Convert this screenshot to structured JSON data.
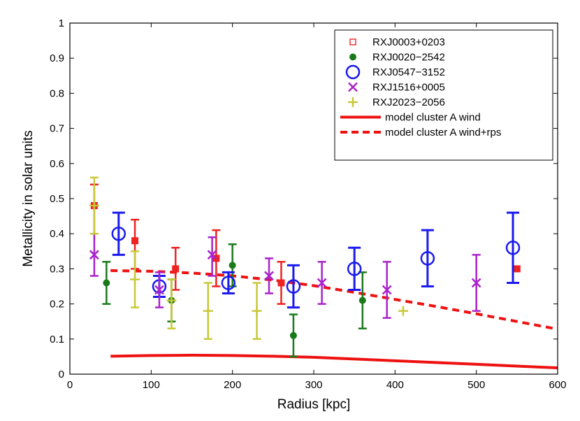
{
  "chart_data": {
    "type": "scatter",
    "title": "",
    "xlabel": "Radius [kpc]",
    "ylabel": "Metallicity in solar units",
    "xlim": [
      0,
      600
    ],
    "ylim": [
      0,
      1
    ],
    "xticks": [
      0,
      100,
      200,
      300,
      400,
      500,
      600
    ],
    "yticks": [
      0,
      0.1,
      0.2,
      0.3,
      0.4,
      0.5,
      0.6,
      0.7,
      0.8,
      0.9,
      1
    ],
    "ytick_labels": [
      "0",
      "0.1",
      "0.2",
      "0.3",
      "0.4",
      "0.5",
      "0.6",
      "0.7",
      "0.8",
      "0.9",
      "1"
    ],
    "legend_position": "top-right",
    "series": [
      {
        "name": "RXJ0003+0203",
        "marker": "square",
        "color": "#ee2222",
        "points": [
          {
            "x": 30,
            "y": 0.48,
            "lo": 0.4,
            "hi": 0.54
          },
          {
            "x": 80,
            "y": 0.38,
            "lo": 0.3,
            "hi": 0.44
          },
          {
            "x": 130,
            "y": 0.3,
            "lo": 0.24,
            "hi": 0.36
          },
          {
            "x": 180,
            "y": 0.33,
            "lo": 0.25,
            "hi": 0.41
          },
          {
            "x": 260,
            "y": 0.26,
            "lo": 0.2,
            "hi": 0.32
          },
          {
            "x": 550,
            "y": 0.3,
            "lo": 0.3,
            "hi": 0.3
          }
        ]
      },
      {
        "name": "RXJ0020−2542",
        "marker": "dot",
        "color": "#1a7a1a",
        "points": [
          {
            "x": 45,
            "y": 0.26,
            "lo": 0.2,
            "hi": 0.32
          },
          {
            "x": 125,
            "y": 0.21,
            "lo": 0.15,
            "hi": 0.27
          },
          {
            "x": 200,
            "y": 0.31,
            "lo": 0.25,
            "hi": 0.37
          },
          {
            "x": 275,
            "y": 0.11,
            "lo": 0.05,
            "hi": 0.17
          },
          {
            "x": 360,
            "y": 0.21,
            "lo": 0.13,
            "hi": 0.29
          }
        ]
      },
      {
        "name": "RXJ0547−3152",
        "marker": "circle",
        "color": "#1a1aee",
        "points": [
          {
            "x": 60,
            "y": 0.4,
            "lo": 0.34,
            "hi": 0.46
          },
          {
            "x": 110,
            "y": 0.25,
            "lo": 0.22,
            "hi": 0.28
          },
          {
            "x": 195,
            "y": 0.26,
            "lo": 0.23,
            "hi": 0.29
          },
          {
            "x": 275,
            "y": 0.25,
            "lo": 0.19,
            "hi": 0.31
          },
          {
            "x": 350,
            "y": 0.3,
            "lo": 0.24,
            "hi": 0.36
          },
          {
            "x": 440,
            "y": 0.33,
            "lo": 0.25,
            "hi": 0.41
          },
          {
            "x": 545,
            "y": 0.36,
            "lo": 0.26,
            "hi": 0.46
          }
        ]
      },
      {
        "name": "RXJ1516+0005",
        "marker": "x",
        "color": "#aa22cc",
        "points": [
          {
            "x": 30,
            "y": 0.34,
            "lo": 0.28,
            "hi": 0.4
          },
          {
            "x": 110,
            "y": 0.24,
            "lo": 0.19,
            "hi": 0.29
          },
          {
            "x": 175,
            "y": 0.34,
            "lo": 0.28,
            "hi": 0.39
          },
          {
            "x": 245,
            "y": 0.28,
            "lo": 0.23,
            "hi": 0.33
          },
          {
            "x": 310,
            "y": 0.26,
            "lo": 0.2,
            "hi": 0.32
          },
          {
            "x": 390,
            "y": 0.24,
            "lo": 0.16,
            "hi": 0.32
          },
          {
            "x": 500,
            "y": 0.26,
            "lo": 0.18,
            "hi": 0.34
          }
        ]
      },
      {
        "name": "RXJ2023−2056",
        "marker": "plus",
        "color": "#c8c83a",
        "points": [
          {
            "x": 30,
            "y": 0.48,
            "lo": 0.4,
            "hi": 0.56
          },
          {
            "x": 80,
            "y": 0.27,
            "lo": 0.19,
            "hi": 0.35
          },
          {
            "x": 125,
            "y": 0.21,
            "lo": 0.13,
            "hi": 0.27
          },
          {
            "x": 170,
            "y": 0.18,
            "lo": 0.1,
            "hi": 0.26
          },
          {
            "x": 230,
            "y": 0.18,
            "lo": 0.1,
            "hi": 0.26
          },
          {
            "x": 410,
            "y": 0.18,
            "lo": 0.18,
            "hi": 0.18
          }
        ]
      }
    ],
    "lines": [
      {
        "name": "model cluster A wind",
        "style": "solid",
        "color": "#ee1111",
        "x": [
          50,
          100,
          150,
          200,
          250,
          300,
          350,
          400,
          450,
          500,
          550,
          600
        ],
        "y": [
          0.051,
          0.053,
          0.054,
          0.053,
          0.051,
          0.048,
          0.043,
          0.038,
          0.033,
          0.028,
          0.023,
          0.018
        ]
      },
      {
        "name": "model cluster A wind+rps",
        "style": "dashed",
        "color": "#ee1111",
        "x": [
          50,
          100,
          150,
          200,
          250,
          300,
          350,
          400,
          450,
          500,
          550,
          600
        ],
        "y": [
          0.295,
          0.293,
          0.288,
          0.28,
          0.268,
          0.252,
          0.233,
          0.213,
          0.193,
          0.172,
          0.15,
          0.128
        ]
      }
    ]
  }
}
